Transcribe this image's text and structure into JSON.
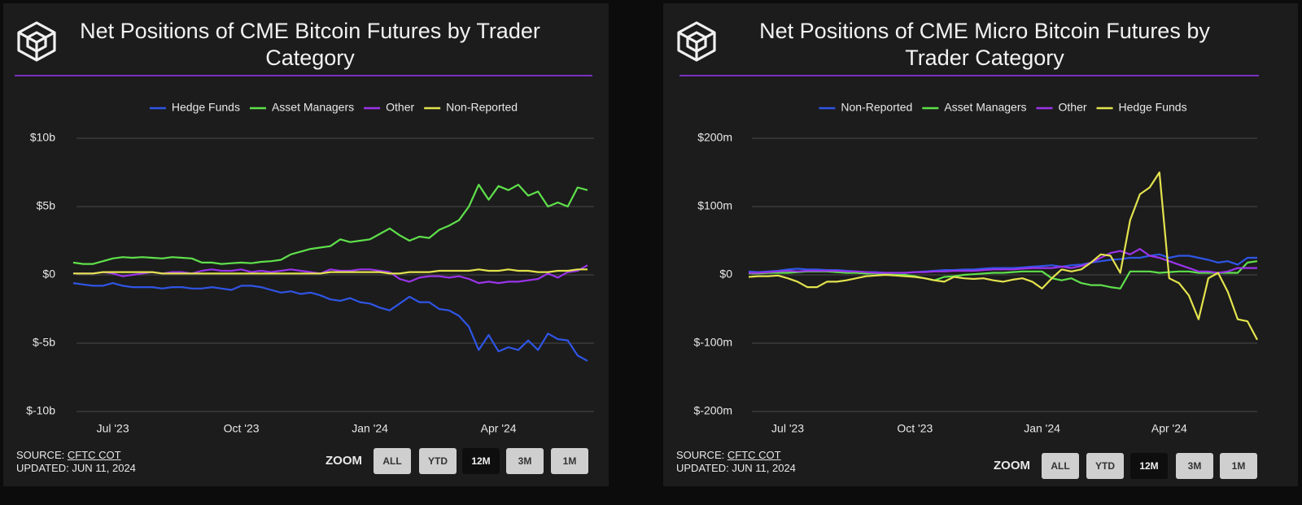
{
  "chart_data": [
    {
      "type": "line",
      "title": "Net Positions of CME Bitcoin Futures by Trader Category",
      "categories": [
        null,
        null,
        null,
        null,
        "Jul '23",
        null,
        null,
        null,
        null,
        null,
        null,
        null,
        null,
        null,
        null,
        null,
        null,
        "Oct '23",
        null,
        null,
        null,
        null,
        null,
        null,
        null,
        null,
        null,
        null,
        null,
        null,
        "Jan '24",
        null,
        null,
        null,
        null,
        null,
        null,
        null,
        null,
        null,
        null,
        null,
        null,
        "Apr '24",
        null,
        null,
        null,
        null,
        null,
        null,
        null,
        null,
        null
      ],
      "ylim": [
        -10,
        10
      ],
      "yticks": [
        {
          "value": -10,
          "label": "$-10b"
        },
        {
          "value": -5,
          "label": "$-5b"
        },
        {
          "value": 0,
          "label": "$0"
        },
        {
          "value": 5,
          "label": "$5b"
        },
        {
          "value": 10,
          "label": "$10b"
        }
      ],
      "grid": true,
      "legend": "top",
      "series": [
        {
          "name": "Hedge Funds",
          "color": "#2f55e6",
          "values": [
            -0.6,
            -0.7,
            -0.8,
            -0.8,
            -0.6,
            -0.8,
            -0.9,
            -0.9,
            -0.9,
            -1.0,
            -0.9,
            -0.9,
            -1.0,
            -1.0,
            -0.9,
            -1.0,
            -1.1,
            -0.8,
            -0.8,
            -0.9,
            -1.1,
            -1.3,
            -1.2,
            -1.4,
            -1.3,
            -1.5,
            -1.8,
            -1.9,
            -1.7,
            -2.0,
            -2.1,
            -2.4,
            -2.6,
            -2.1,
            -1.6,
            -2.0,
            -2.0,
            -2.5,
            -2.6,
            -3.0,
            -3.8,
            -5.5,
            -4.4,
            -5.6,
            -5.3,
            -5.5,
            -4.8,
            -5.5,
            -4.3,
            -4.7,
            -4.8,
            -5.9,
            -6.3
          ]
        },
        {
          "name": "Asset Managers",
          "color": "#5fe04b",
          "values": [
            0.9,
            0.8,
            0.8,
            1.0,
            1.2,
            1.3,
            1.25,
            1.3,
            1.25,
            1.2,
            1.3,
            1.25,
            1.2,
            0.9,
            0.9,
            0.8,
            0.85,
            0.9,
            0.85,
            0.95,
            1.0,
            1.1,
            1.5,
            1.7,
            1.9,
            2.0,
            2.1,
            2.6,
            2.4,
            2.5,
            2.6,
            3.0,
            3.4,
            2.9,
            2.5,
            2.8,
            2.7,
            3.3,
            3.6,
            4.0,
            5.0,
            6.6,
            5.5,
            6.5,
            6.2,
            6.6,
            5.8,
            6.1,
            5.0,
            5.3,
            5.0,
            6.4,
            6.2
          ]
        },
        {
          "name": "Other",
          "color": "#9b34ea",
          "values": [
            0.1,
            0.1,
            0.1,
            0.2,
            0.1,
            -0.1,
            0.0,
            0.1,
            0.2,
            0.1,
            0.2,
            0.2,
            0.1,
            0.3,
            0.4,
            0.3,
            0.3,
            0.4,
            0.2,
            0.3,
            0.2,
            0.3,
            0.4,
            0.3,
            0.2,
            0.1,
            0.4,
            0.3,
            0.3,
            0.4,
            0.4,
            0.3,
            0.2,
            -0.3,
            -0.5,
            -0.2,
            -0.1,
            -0.1,
            -0.2,
            -0.1,
            -0.3,
            -0.6,
            -0.5,
            -0.6,
            -0.5,
            -0.5,
            -0.4,
            -0.3,
            0.1,
            -0.2,
            0.2,
            0.3,
            0.7
          ]
        },
        {
          "name": "Non-Reported",
          "color": "#e3e34e",
          "values": [
            0.1,
            0.1,
            0.1,
            0.2,
            0.2,
            0.2,
            0.2,
            0.2,
            0.2,
            0.1,
            0.1,
            0.1,
            0.1,
            0.1,
            0.1,
            0.1,
            0.1,
            0.1,
            0.1,
            0.1,
            0.1,
            0.1,
            0.1,
            0.1,
            0.1,
            0.1,
            0.2,
            0.2,
            0.2,
            0.2,
            0.2,
            0.2,
            0.1,
            0.1,
            0.2,
            0.2,
            0.2,
            0.3,
            0.3,
            0.3,
            0.3,
            0.4,
            0.3,
            0.3,
            0.4,
            0.3,
            0.3,
            0.2,
            0.2,
            0.3,
            0.3,
            0.4,
            0.4
          ]
        }
      ],
      "source": {
        "label": "SOURCE:",
        "link": "CFTC COT"
      },
      "updated": "UPDATED: JUN 11, 2024",
      "zoom": {
        "label": "ZOOM",
        "options": [
          "ALL",
          "YTD",
          "12M",
          "3M",
          "1M"
        ],
        "active": "12M"
      }
    },
    {
      "type": "line",
      "title": "Net Positions of CME Micro Bitcoin Futures by Trader Category",
      "categories": [
        null,
        null,
        null,
        null,
        "Jul '23",
        null,
        null,
        null,
        null,
        null,
        null,
        null,
        null,
        null,
        null,
        null,
        null,
        "Oct '23",
        null,
        null,
        null,
        null,
        null,
        null,
        null,
        null,
        null,
        null,
        null,
        null,
        "Jan '24",
        null,
        null,
        null,
        null,
        null,
        null,
        null,
        null,
        null,
        null,
        null,
        null,
        "Apr '24",
        null,
        null,
        null,
        null,
        null,
        null,
        null,
        null,
        null
      ],
      "ylim": [
        -200,
        200
      ],
      "yticks": [
        {
          "value": -200,
          "label": "$-200m"
        },
        {
          "value": -100,
          "label": "$-100m"
        },
        {
          "value": 0,
          "label": "$0"
        },
        {
          "value": 100,
          "label": "$100m"
        },
        {
          "value": 200,
          "label": "$200m"
        }
      ],
      "grid": true,
      "legend": "top",
      "series": [
        {
          "name": "Non-Reported",
          "color": "#2f55e6",
          "values": [
            5,
            4,
            5,
            6,
            8,
            9,
            8,
            8,
            7,
            7,
            6,
            5,
            4,
            4,
            3,
            3,
            3,
            4,
            5,
            6,
            7,
            7,
            8,
            8,
            9,
            10,
            10,
            10,
            11,
            12,
            13,
            14,
            12,
            14,
            15,
            18,
            20,
            22,
            23,
            25,
            25,
            28,
            30,
            25,
            28,
            28,
            25,
            22,
            18,
            20,
            15,
            25,
            25
          ]
        },
        {
          "name": "Asset Managers",
          "color": "#5fe04b",
          "values": [
            2,
            2,
            3,
            3,
            3,
            4,
            5,
            5,
            5,
            4,
            3,
            3,
            2,
            2,
            1,
            0,
            0,
            -2,
            -5,
            -8,
            -3,
            -2,
            0,
            1,
            2,
            3,
            3,
            4,
            5,
            5,
            5,
            -5,
            -8,
            -5,
            -12,
            -15,
            -15,
            -18,
            -20,
            5,
            5,
            5,
            3,
            4,
            5,
            5,
            3,
            3,
            3,
            3,
            3,
            18,
            20
          ]
        },
        {
          "name": "Other",
          "color": "#9b34ea",
          "values": [
            3,
            3,
            4,
            5,
            6,
            5,
            6,
            6,
            6,
            6,
            5,
            5,
            4,
            3,
            3,
            3,
            3,
            4,
            4,
            5,
            5,
            6,
            6,
            6,
            7,
            8,
            8,
            8,
            9,
            10,
            10,
            10,
            12,
            10,
            13,
            18,
            25,
            32,
            35,
            30,
            38,
            28,
            25,
            20,
            15,
            10,
            5,
            5,
            3,
            5,
            10,
            10,
            10
          ]
        },
        {
          "name": "Hedge Funds",
          "color": "#e3e34e",
          "values": [
            -3,
            -2,
            -2,
            -1,
            -5,
            -10,
            -18,
            -18,
            -10,
            -10,
            -8,
            -5,
            -2,
            -1,
            0,
            -1,
            -2,
            -3,
            -5,
            -8,
            -10,
            -3,
            -5,
            -6,
            -5,
            -8,
            -10,
            -7,
            -5,
            -10,
            -20,
            -5,
            8,
            5,
            8,
            18,
            30,
            28,
            3,
            80,
            118,
            128,
            150,
            -5,
            -12,
            -30,
            -65,
            -5,
            3,
            -25,
            -65,
            -68,
            -95
          ]
        }
      ],
      "source": {
        "label": "SOURCE:",
        "link": "CFTC COT"
      },
      "updated": "UPDATED: JUN 11, 2024",
      "zoom": {
        "label": "ZOOM",
        "options": [
          "ALL",
          "YTD",
          "12M",
          "3M",
          "1M"
        ],
        "active": "12M"
      }
    }
  ]
}
